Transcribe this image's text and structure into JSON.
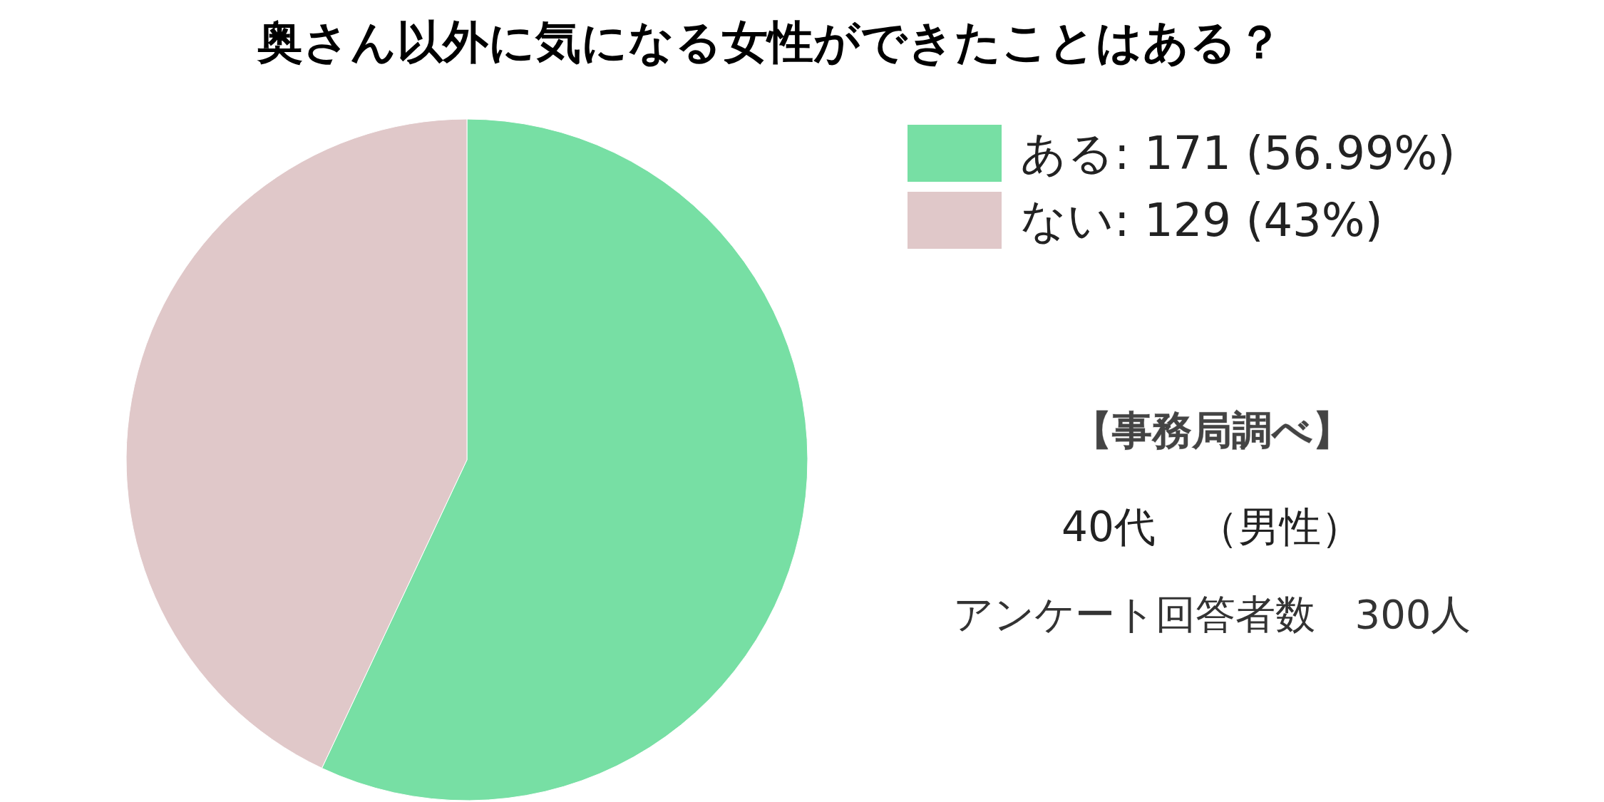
{
  "chart_data": {
    "type": "pie",
    "title": "奥さん以外に気になる女性ができたことはある？",
    "categories": [
      "ある",
      "ない"
    ],
    "values": [
      171,
      129
    ],
    "colors": [
      "#77dfa4",
      "#e0c8c9"
    ],
    "value_labels": [
      "171 (56.99%)",
      "129 (43%)"
    ],
    "legend": "top right",
    "annotations": [
      "【事務局調べ】",
      "40代　（男性）",
      "アンケート回答者数　300人"
    ]
  }
}
